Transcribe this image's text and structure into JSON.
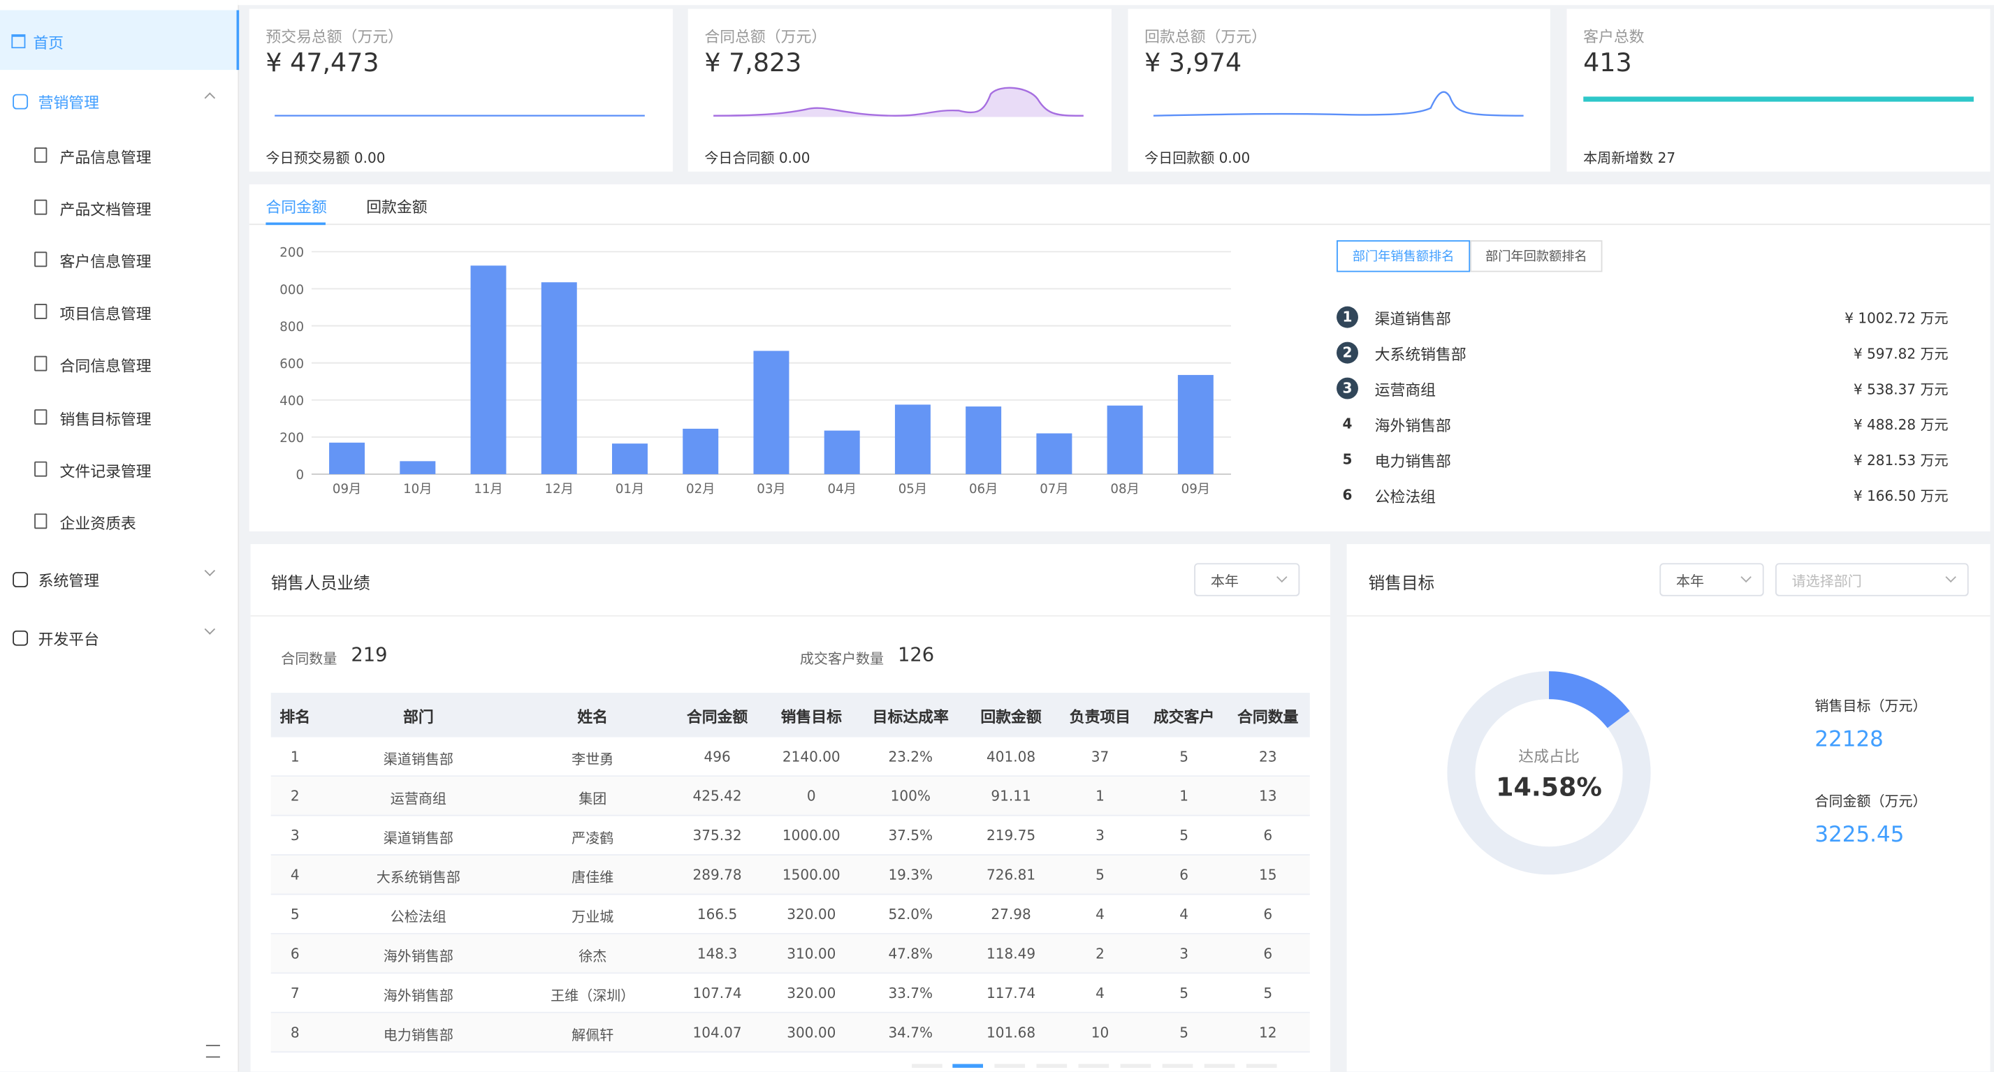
{
  "sidebar": {
    "home": "首页",
    "marketing": "营销管理",
    "marketing_items": [
      "产品信息管理",
      "产品文档管理",
      "客户信息管理",
      "项目信息管理",
      "合同信息管理",
      "销售目标管理",
      "文件记录管理",
      "企业资质表"
    ],
    "system": "系统管理",
    "dev": "开发平台"
  },
  "cards": [
    {
      "title": "预交易总额（万元）",
      "value": "¥ 47,473",
      "footer": "今日预交易额 0.00"
    },
    {
      "title": "合同总额（万元）",
      "value": "¥ 7,823",
      "footer": "今日合同额 0.00"
    },
    {
      "title": "回款总额（万元）",
      "value": "¥ 3,974",
      "footer": "今日回款额 0.00"
    },
    {
      "title": "客户总数",
      "value": "413",
      "footer": "本周新增数 27"
    }
  ],
  "chart_tabs": [
    "合同金额",
    "回款金额"
  ],
  "chart_data": {
    "type": "bar",
    "categories": [
      "09月",
      "10月",
      "11月",
      "12月",
      "01月",
      "02月",
      "03月",
      "04月",
      "05月",
      "06月",
      "07月",
      "08月",
      "09月"
    ],
    "values": [
      170,
      70,
      1125,
      1035,
      165,
      245,
      665,
      235,
      375,
      365,
      220,
      370,
      535
    ],
    "color": "#6495f5",
    "ylim": [
      0,
      1200
    ],
    "yticks": [
      0,
      200,
      400,
      600,
      800,
      {
        "value": 1000,
        "label": "000"
      },
      {
        "value": 1200,
        "label": "200"
      }
    ],
    "grid": true
  },
  "ranking": {
    "tabs": [
      "部门年销售额排名",
      "部门年回款额排名"
    ],
    "items": [
      {
        "rank": "1",
        "name": "渠道销售部",
        "amount": "¥ 1002.72 万元"
      },
      {
        "rank": "2",
        "name": "大系统销售部",
        "amount": "¥ 597.82 万元"
      },
      {
        "rank": "3",
        "name": "运营商组",
        "amount": "¥ 538.37 万元"
      },
      {
        "rank": "4",
        "name": "海外销售部",
        "amount": "¥ 488.28 万元"
      },
      {
        "rank": "5",
        "name": "电力销售部",
        "amount": "¥ 281.53 万元"
      },
      {
        "rank": "6",
        "name": "公检法组",
        "amount": "¥ 166.50 万元"
      }
    ]
  },
  "sales_staff": {
    "title": "销售人员业绩",
    "period": "本年",
    "stats": [
      {
        "label": "合同数量",
        "value": "219"
      },
      {
        "label": "成交客户数量",
        "value": "126"
      }
    ],
    "table": {
      "headers": [
        "排名",
        "部门",
        "姓名",
        "合同金额",
        "销售目标",
        "目标达成率",
        "回款金额",
        "负责项目",
        "成交客户",
        "合同数量"
      ],
      "rows": [
        [
          "1",
          "渠道销售部",
          "李世勇",
          "496",
          "2140.00",
          "23.2%",
          "401.08",
          "37",
          "5",
          "23"
        ],
        [
          "2",
          "运营商组",
          "集团",
          "425.42",
          "0",
          "100%",
          "91.11",
          "1",
          "1",
          "13"
        ],
        [
          "3",
          "渠道销售部",
          "严凌鹤",
          "375.32",
          "1000.00",
          "37.5%",
          "219.75",
          "3",
          "5",
          "6"
        ],
        [
          "4",
          "大系统销售部",
          "唐佳维",
          "289.78",
          "1500.00",
          "19.3%",
          "726.81",
          "5",
          "6",
          "15"
        ],
        [
          "5",
          "公检法组",
          "万业城",
          "166.5",
          "320.00",
          "52.0%",
          "27.98",
          "4",
          "4",
          "6"
        ],
        [
          "6",
          "海外销售部",
          "徐杰",
          "148.3",
          "310.00",
          "47.8%",
          "118.49",
          "2",
          "3",
          "6"
        ],
        [
          "7",
          "海外销售部",
          "王维（深圳）",
          "107.74",
          "320.00",
          "33.7%",
          "117.74",
          "4",
          "5",
          "5"
        ],
        [
          "8",
          "电力销售部",
          "解佩轩",
          "104.07",
          "300.00",
          "34.7%",
          "101.68",
          "10",
          "5",
          "12"
        ]
      ]
    }
  },
  "sales_target": {
    "title": "销售目标",
    "period": "本年",
    "department_placeholder": "请选择部门",
    "ratio_label": "达成占比",
    "ratio": "14.58%",
    "target_label": "销售目标（万元）",
    "target": "22128",
    "amount_label": "合同金额（万元）",
    "amount": "3225.45"
  }
}
